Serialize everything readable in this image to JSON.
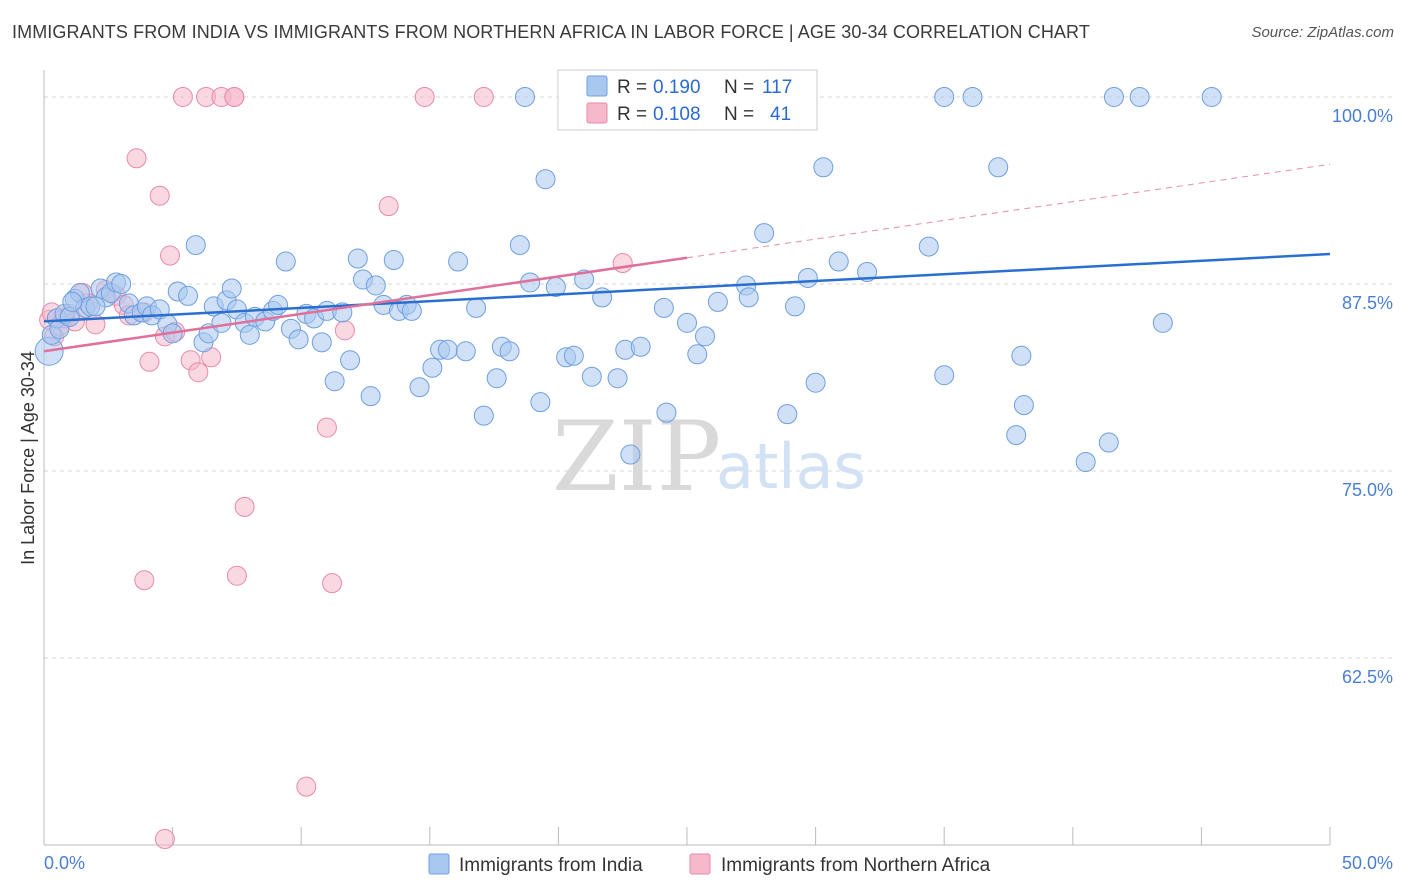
{
  "header": {
    "title": "IMMIGRANTS FROM INDIA VS IMMIGRANTS FROM NORTHERN AFRICA IN LABOR FORCE | AGE 30-34 CORRELATION CHART",
    "source": "Source: ZipAtlas.com"
  },
  "watermark": {
    "zip": "ZIP",
    "atlas": "atlas"
  },
  "colors": {
    "india_fill": "#a9c8f0",
    "india_stroke": "#6e9fe0",
    "india_line": "#2a6fcf",
    "africa_fill": "#f6b8cb",
    "africa_stroke": "#e88aa9",
    "africa_line": "#e0709a",
    "grid": "#d7d7d7",
    "axis_text": "#4a7fd0"
  },
  "legend": {
    "rows": [
      {
        "r_label": "R =",
        "r_value": "0.190",
        "n_label": "N =",
        "n_value": "117"
      },
      {
        "r_label": "R =",
        "r_value": "0.108",
        "n_label": "N =",
        "n_value": "41"
      }
    ]
  },
  "bottom_legend": {
    "india": "Immigrants from India",
    "africa": "Immigrants from Northern Africa"
  },
  "chart_data": {
    "type": "scatter",
    "title": "IMMIGRANTS FROM INDIA VS IMMIGRANTS FROM NORTHERN AFRICA IN LABOR FORCE | AGE 30-34 CORRELATION CHART",
    "xlabel": "",
    "ylabel": "In Labor Force | Age 30-34",
    "xlim": [
      0,
      50
    ],
    "ylim": [
      50,
      101.2
    ],
    "x_tick_labels": [
      "0.0%",
      "50.0%"
    ],
    "y_ticks": [
      62.5,
      75.0,
      87.5,
      100.0
    ],
    "y_tick_labels": [
      "62.5%",
      "75.0%",
      "87.5%",
      "100.0%"
    ],
    "grid": true,
    "legend_position": "top-center",
    "series": [
      {
        "name": "Immigrants from India",
        "R": 0.19,
        "N": 117,
        "trend": {
          "x": [
            0,
            50
          ],
          "y": [
            85.0,
            89.5
          ]
        },
        "points": [
          [
            0.2,
            83.0
          ],
          [
            0.3,
            84.1
          ],
          [
            0.5,
            85.2
          ],
          [
            0.6,
            84.5
          ],
          [
            0.8,
            85.5
          ],
          [
            1.0,
            85.3
          ],
          [
            1.2,
            86.5
          ],
          [
            1.4,
            86.9
          ],
          [
            1.6,
            85.9
          ],
          [
            1.8,
            86.0
          ],
          [
            2.2,
            87.2
          ],
          [
            2.4,
            86.6
          ],
          [
            2.6,
            86.9
          ],
          [
            2.8,
            87.6
          ],
          [
            3.0,
            87.5
          ],
          [
            3.3,
            86.2
          ],
          [
            3.5,
            85.4
          ],
          [
            3.8,
            85.6
          ],
          [
            4.0,
            86.0
          ],
          [
            4.2,
            85.4
          ],
          [
            4.5,
            85.8
          ],
          [
            4.8,
            84.8
          ],
          [
            5.0,
            84.2
          ],
          [
            5.2,
            87.0
          ],
          [
            5.6,
            86.7
          ],
          [
            5.9,
            90.1
          ],
          [
            6.2,
            83.6
          ],
          [
            6.4,
            84.2
          ],
          [
            6.6,
            86.0
          ],
          [
            6.9,
            84.9
          ],
          [
            7.1,
            86.4
          ],
          [
            7.3,
            87.2
          ],
          [
            7.5,
            85.8
          ],
          [
            7.8,
            84.9
          ],
          [
            8.0,
            84.1
          ],
          [
            8.2,
            85.3
          ],
          [
            8.6,
            85.0
          ],
          [
            8.9,
            85.7
          ],
          [
            9.1,
            86.1
          ],
          [
            9.4,
            89.0
          ],
          [
            9.6,
            84.5
          ],
          [
            9.9,
            83.8
          ],
          [
            10.2,
            85.5
          ],
          [
            10.5,
            85.2
          ],
          [
            10.8,
            83.6
          ],
          [
            11.0,
            85.7
          ],
          [
            11.3,
            81.0
          ],
          [
            11.6,
            85.6
          ],
          [
            11.9,
            82.4
          ],
          [
            12.2,
            89.2
          ],
          [
            12.4,
            87.8
          ],
          [
            12.7,
            80.0
          ],
          [
            12.9,
            87.4
          ],
          [
            13.2,
            86.1
          ],
          [
            13.6,
            89.1
          ],
          [
            13.8,
            85.7
          ],
          [
            14.1,
            86.1
          ],
          [
            14.3,
            85.7
          ],
          [
            14.6,
            80.6
          ],
          [
            15.1,
            81.9
          ],
          [
            15.4,
            83.1
          ],
          [
            15.7,
            83.1
          ],
          [
            16.1,
            89.0
          ],
          [
            16.4,
            83.0
          ],
          [
            16.8,
            85.9
          ],
          [
            17.1,
            78.7
          ],
          [
            17.6,
            81.2
          ],
          [
            17.8,
            83.3
          ],
          [
            18.1,
            83.0
          ],
          [
            18.5,
            90.1
          ],
          [
            18.9,
            87.6
          ],
          [
            19.3,
            79.6
          ],
          [
            19.5,
            94.5
          ],
          [
            19.9,
            87.3
          ],
          [
            20.3,
            82.6
          ],
          [
            20.6,
            82.7
          ],
          [
            21.0,
            87.8
          ],
          [
            21.3,
            81.3
          ],
          [
            21.7,
            86.6
          ],
          [
            22.3,
            81.2
          ],
          [
            22.6,
            83.1
          ],
          [
            22.8,
            76.1
          ],
          [
            23.2,
            83.3
          ],
          [
            24.1,
            85.9
          ],
          [
            24.2,
            78.9
          ],
          [
            25.0,
            84.9
          ],
          [
            25.4,
            82.8
          ],
          [
            25.7,
            84.0
          ],
          [
            26.2,
            86.3
          ],
          [
            27.3,
            87.4
          ],
          [
            27.4,
            86.6
          ],
          [
            28.0,
            90.9
          ],
          [
            28.9,
            78.8
          ],
          [
            29.2,
            86.0
          ],
          [
            29.7,
            87.9
          ],
          [
            30.0,
            80.9
          ],
          [
            30.3,
            95.3
          ],
          [
            30.9,
            89.0
          ],
          [
            32.0,
            88.3
          ],
          [
            34.4,
            90.0
          ],
          [
            35.0,
            81.4
          ],
          [
            36.1,
            100.0
          ],
          [
            37.1,
            95.3
          ],
          [
            37.8,
            77.4
          ],
          [
            38.0,
            82.7
          ],
          [
            38.1,
            79.4
          ],
          [
            40.5,
            75.6
          ],
          [
            41.4,
            76.9
          ],
          [
            43.5,
            84.9
          ],
          [
            18.7,
            100.0
          ],
          [
            20.4,
            100.0
          ],
          [
            35.0,
            100.0
          ],
          [
            41.6,
            100.0
          ],
          [
            42.6,
            100.0
          ],
          [
            45.4,
            100.0
          ],
          [
            1.1,
            86.3
          ],
          [
            2.0,
            86.0
          ]
        ]
      },
      {
        "name": "Immigrants from Northern Africa",
        "R": 0.108,
        "N": 41,
        "trend": {
          "x": [
            0,
            50
          ],
          "y": [
            83.0,
            95.5
          ]
        },
        "points": [
          [
            0.2,
            85.1
          ],
          [
            0.3,
            85.6
          ],
          [
            0.4,
            84.0
          ],
          [
            0.6,
            84.7
          ],
          [
            0.8,
            85.2
          ],
          [
            1.0,
            85.5
          ],
          [
            1.2,
            85.0
          ],
          [
            1.5,
            86.9
          ],
          [
            1.7,
            86.2
          ],
          [
            2.0,
            84.8
          ],
          [
            2.4,
            87.1
          ],
          [
            2.8,
            86.7
          ],
          [
            3.1,
            86.1
          ],
          [
            3.3,
            85.4
          ],
          [
            3.6,
            95.9
          ],
          [
            3.9,
            85.6
          ],
          [
            4.1,
            82.3
          ],
          [
            4.5,
            93.4
          ],
          [
            4.7,
            84.0
          ],
          [
            4.9,
            89.4
          ],
          [
            5.1,
            84.3
          ],
          [
            5.4,
            100.0
          ],
          [
            5.7,
            82.4
          ],
          [
            6.0,
            81.6
          ],
          [
            6.3,
            100.0
          ],
          [
            6.5,
            82.6
          ],
          [
            6.9,
            100.0
          ],
          [
            7.4,
            100.0
          ],
          [
            7.8,
            72.6
          ],
          [
            7.5,
            68.0
          ],
          [
            11.0,
            77.9
          ],
          [
            11.2,
            67.5
          ],
          [
            11.7,
            84.4
          ],
          [
            13.4,
            92.7
          ],
          [
            14.8,
            100.0
          ],
          [
            17.1,
            100.0
          ],
          [
            22.5,
            88.9
          ],
          [
            3.9,
            67.7
          ],
          [
            7.4,
            100.0
          ],
          [
            10.2,
            53.9
          ],
          [
            4.7,
            50.4
          ]
        ]
      }
    ]
  }
}
